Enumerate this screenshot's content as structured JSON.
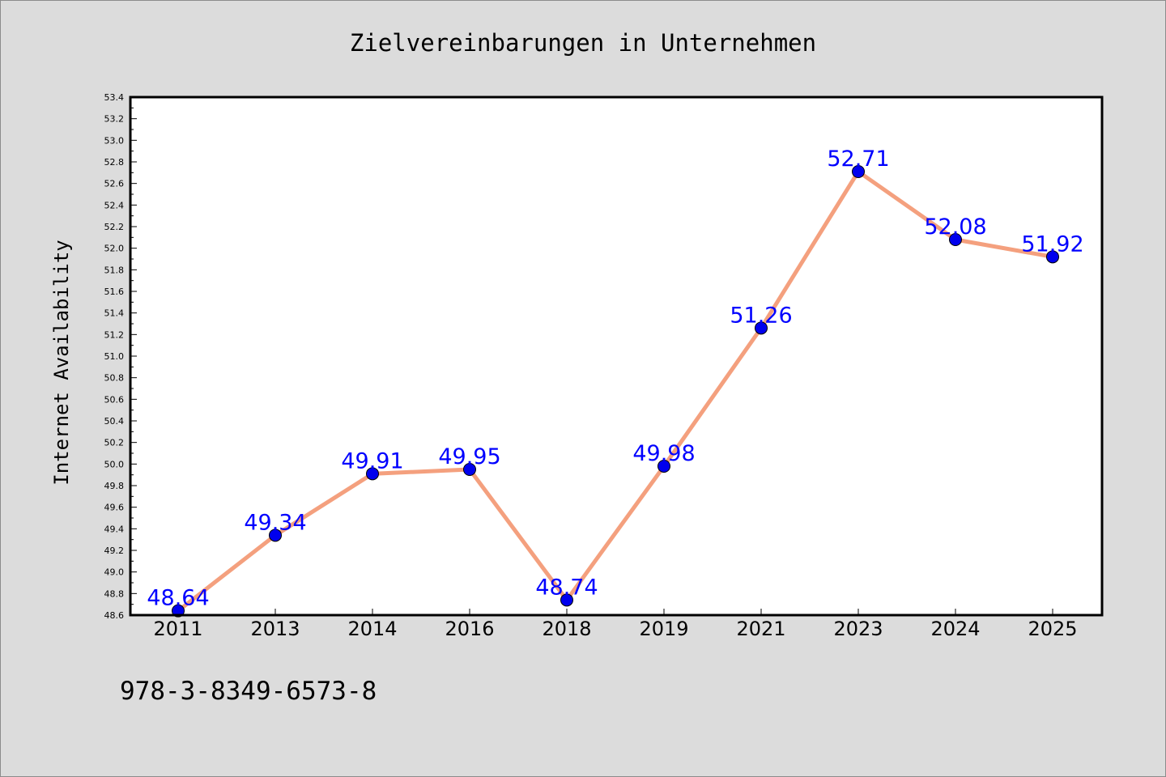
{
  "chart_data": {
    "type": "line",
    "title": "Zielvereinbarungen in Unternehmen",
    "xlabel": "",
    "ylabel": "Internet Availability",
    "categories": [
      "2011",
      "2013",
      "2014",
      "2016",
      "2018",
      "2019",
      "2021",
      "2023",
      "2024",
      "2025"
    ],
    "series": [
      {
        "values": [
          48.64,
          49.34,
          49.91,
          49.95,
          48.74,
          49.98,
          51.26,
          52.71,
          52.08,
          51.92
        ],
        "labels": [
          "48.64",
          "49.34",
          "49.91",
          "49.95",
          "48.74",
          "49.98",
          "51.26",
          "52.71",
          "52.08",
          "51.92"
        ]
      }
    ],
    "ylim": [
      48.6,
      53.4
    ],
    "yticks": [
      "48.6",
      "48.8",
      "49.0",
      "49.2",
      "49.4",
      "49.6",
      "49.8",
      "50.0",
      "50.2",
      "50.4",
      "50.6",
      "50.8",
      "51.0",
      "51.2",
      "51.4",
      "51.6",
      "51.8",
      "52.0",
      "52.2",
      "52.4",
      "52.6",
      "52.8",
      "53.0",
      "53.2",
      "53.4"
    ],
    "grid": false,
    "colors": {
      "line": "#f4a07e",
      "marker": "#0000ee",
      "label": "#0000ff",
      "background": "#dcdcdc",
      "plot_background": "#ffffff"
    }
  },
  "footer_text": "978-3-8349-6573-8"
}
